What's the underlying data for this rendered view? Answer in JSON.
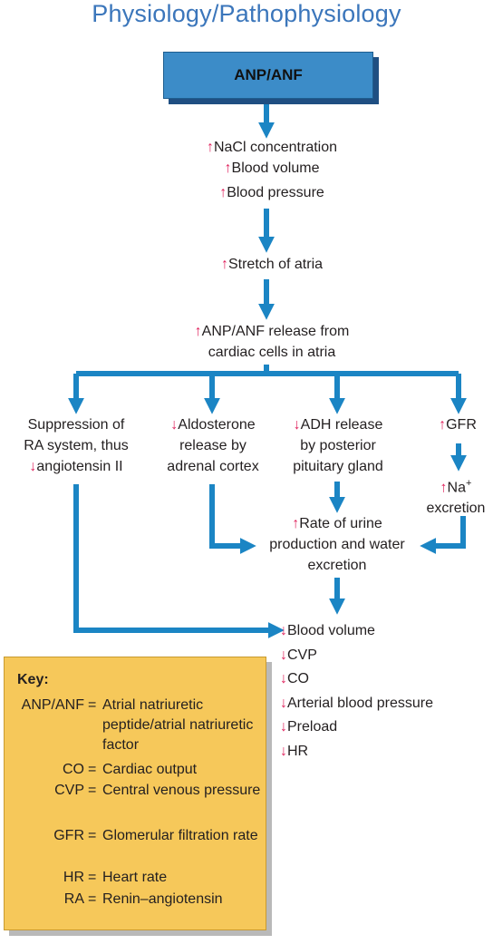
{
  "title": "Physiology/Pathophysiology",
  "colors": {
    "arrow": "#1b85c4",
    "header_box": "#3c8cc8",
    "up_arrow": "#e0245e",
    "key_box": "#f6c85a"
  },
  "header": "ANP/ANF",
  "step1": [
    "NaCl concentration",
    "Blood volume",
    "Blood pressure"
  ],
  "step2": "Stretch of atria",
  "step3": [
    "ANP/ANF release from",
    "cardiac cells in atria"
  ],
  "branches": {
    "ra": [
      "Suppression of",
      "RA system, thus",
      "angiotensin II"
    ],
    "aldosterone": [
      "Aldosterone",
      "release by",
      "adrenal cortex"
    ],
    "adh": [
      "ADH release",
      "by posterior",
      "pituitary gland"
    ],
    "gfr": "GFR",
    "na_excretion": {
      "line1": "Na",
      "sup": "+",
      "line2": "excretion"
    }
  },
  "urine": [
    "Rate of urine",
    "production and water",
    "excretion"
  ],
  "outcomes": [
    "Blood volume",
    "CVP",
    "CO",
    "Arterial blood pressure",
    "Preload",
    "HR"
  ],
  "key": {
    "title": "Key:",
    "entries": [
      {
        "abbr": "ANP/ANF",
        "definition": "Atrial natriuretic peptide/atrial natriuretic factor"
      },
      {
        "abbr": "CO",
        "definition": "Cardiac output"
      },
      {
        "abbr": "CVP",
        "definition": "Central venous pressure"
      },
      {
        "abbr": "GFR",
        "definition": "Glomerular filtration rate"
      },
      {
        "abbr": "HR",
        "definition": "Heart rate"
      },
      {
        "abbr": "RA",
        "definition": "Renin–angiotensin"
      }
    ]
  }
}
